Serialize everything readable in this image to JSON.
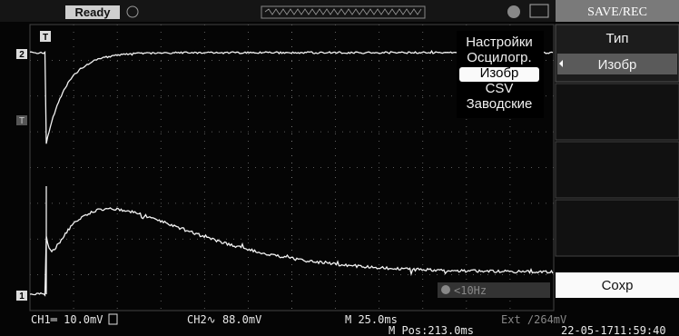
{
  "top_bar": {
    "status": "Ready",
    "menu_title": "SAVE/REC"
  },
  "markers": {
    "trigger": "T",
    "ch2": "2",
    "trigger_level": "T",
    "ch1": "1"
  },
  "popup_menu": {
    "items": [
      "Настройки",
      "Осцилогр.",
      "Изобр",
      "CSV",
      "Заводские"
    ]
  },
  "side_menu": {
    "type_label": "Тип",
    "type_value": "Изобр",
    "save": "Сохр"
  },
  "filter": "<10Hz",
  "status_bar": {
    "ch1": "CH1═ 10.0mV",
    "ch2": "CH2∿ 88.0mV",
    "timebase": "M 25.0ms",
    "position": "M Pos:213.0ms",
    "trigger": "Ext ∕264mV",
    "datetime": "22-05-1711:59:40"
  }
}
